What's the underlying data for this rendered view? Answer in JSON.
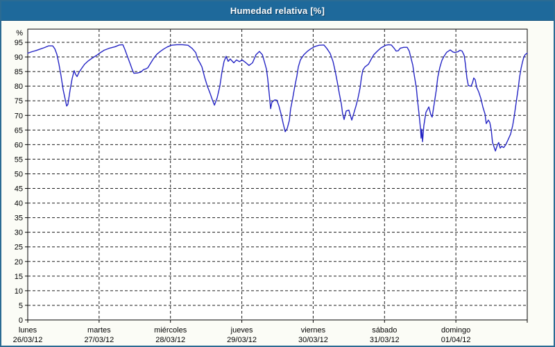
{
  "window": {
    "title": "Humedad relativa [%]"
  },
  "colors": {
    "titlebar_bg": "#1e699b",
    "titlebar_border": "#15527e",
    "titlebar_text": "#ffffff",
    "outer_border": "#2b6b93",
    "page_bg": "#fbfcf6",
    "plot_bg": "#ffffff",
    "axis": "#000000",
    "grid": "#1a1a1a",
    "text": "#000000",
    "line": "#2424c4"
  },
  "chart_data": {
    "type": "line",
    "title": "Humedad relativa [%]",
    "ylabel": "%",
    "ylim": [
      0,
      99.5
    ],
    "yticks": [
      0,
      5,
      10,
      15,
      20,
      25,
      30,
      35,
      40,
      45,
      50,
      55,
      60,
      65,
      70,
      75,
      80,
      85,
      90,
      95
    ],
    "xlim_hours": [
      0,
      168
    ],
    "grid": "dashed",
    "legend_position": "none",
    "day_ticks": [
      {
        "hour": 0,
        "day": "lunes",
        "date": "26/03/12"
      },
      {
        "hour": 24,
        "day": "martes",
        "date": "27/03/12"
      },
      {
        "hour": 48,
        "day": "miércoles",
        "date": "28/03/12"
      },
      {
        "hour": 72,
        "day": "jueves",
        "date": "29/03/12"
      },
      {
        "hour": 96,
        "day": "viernes",
        "date": "30/03/12"
      },
      {
        "hour": 120,
        "day": "sábado",
        "date": "31/03/12"
      },
      {
        "hour": 144,
        "day": "domingo",
        "date": "01/04/12"
      }
    ],
    "series": [
      {
        "name": "Humedad relativa",
        "points": [
          [
            0,
            91.3
          ],
          [
            1.4,
            91.8
          ],
          [
            2.8,
            92.2
          ],
          [
            4.2,
            92.7
          ],
          [
            5.6,
            93.2
          ],
          [
            7,
            93.8
          ],
          [
            8.4,
            93.8
          ],
          [
            9.1,
            92.8
          ],
          [
            9.8,
            90.9
          ],
          [
            10.5,
            87.5
          ],
          [
            11.2,
            83.5
          ],
          [
            11.9,
            78.8
          ],
          [
            12.6,
            75.5
          ],
          [
            13.1,
            73.2
          ],
          [
            13.5,
            73.8
          ],
          [
            14.2,
            78.5
          ],
          [
            14.9,
            82.5
          ],
          [
            15.6,
            85.3
          ],
          [
            16.1,
            84
          ],
          [
            16.6,
            83.3
          ],
          [
            17.3,
            84.8
          ],
          [
            18.2,
            86.2
          ],
          [
            19.1,
            87.5
          ],
          [
            20.3,
            88.6
          ],
          [
            21.7,
            89.6
          ],
          [
            23.1,
            90.5
          ],
          [
            24,
            91.2
          ],
          [
            25.7,
            92.3
          ],
          [
            27.5,
            93
          ],
          [
            29.4,
            93.5
          ],
          [
            30.8,
            94.1
          ],
          [
            32,
            94.2
          ],
          [
            32.7,
            92.5
          ],
          [
            33.6,
            90
          ],
          [
            34.5,
            87.5
          ],
          [
            35.2,
            85.5
          ],
          [
            35.7,
            84.4
          ],
          [
            36.9,
            84.5
          ],
          [
            38,
            84.8
          ],
          [
            39,
            85.7
          ],
          [
            39.7,
            85.9
          ],
          [
            40.4,
            86.3
          ],
          [
            41.3,
            87.8
          ],
          [
            42.2,
            89.3
          ],
          [
            43.4,
            90.9
          ],
          [
            44.6,
            91.9
          ],
          [
            45.7,
            92.7
          ],
          [
            46.9,
            93.4
          ],
          [
            48.3,
            94
          ],
          [
            50.2,
            94.2
          ],
          [
            52,
            94.2
          ],
          [
            53.9,
            94
          ],
          [
            55.3,
            92.9
          ],
          [
            56.5,
            91.5
          ],
          [
            57.2,
            89.2
          ],
          [
            57.9,
            88
          ],
          [
            58.6,
            86.6
          ],
          [
            59.5,
            83
          ],
          [
            60.4,
            80
          ],
          [
            61.4,
            77.4
          ],
          [
            62.1,
            75.3
          ],
          [
            62.8,
            73.5
          ],
          [
            63.7,
            76
          ],
          [
            64.6,
            80
          ],
          [
            65.3,
            84.8
          ],
          [
            66,
            88.4
          ],
          [
            66.7,
            90.2
          ],
          [
            67.4,
            88.5
          ],
          [
            68.1,
            89.3
          ],
          [
            69.3,
            88
          ],
          [
            70.2,
            89
          ],
          [
            71.2,
            88.4
          ],
          [
            72.1,
            89
          ],
          [
            73.3,
            88.1
          ],
          [
            74.4,
            87.1
          ],
          [
            75.6,
            88
          ],
          [
            76.8,
            90.8
          ],
          [
            77.9,
            91.9
          ],
          [
            78.9,
            90.8
          ],
          [
            79.6,
            88.4
          ],
          [
            80.3,
            85.8
          ],
          [
            80.7,
            82.5
          ],
          [
            81.2,
            77.5
          ],
          [
            81.7,
            72.3
          ],
          [
            82.1,
            74.5
          ],
          [
            83.1,
            75.3
          ],
          [
            83.8,
            75.2
          ],
          [
            84.5,
            73.2
          ],
          [
            85.2,
            70.5
          ],
          [
            85.9,
            67.3
          ],
          [
            86.6,
            64.4
          ],
          [
            87.3,
            65.6
          ],
          [
            88,
            68.3
          ],
          [
            88.4,
            72.2
          ],
          [
            89.1,
            75.8
          ],
          [
            89.8,
            79.9
          ],
          [
            90.5,
            83.4
          ],
          [
            91,
            86.6
          ],
          [
            91.7,
            89
          ],
          [
            92.9,
            90.8
          ],
          [
            94,
            91.9
          ],
          [
            95.2,
            92.8
          ],
          [
            96.6,
            93.6
          ],
          [
            98,
            94
          ],
          [
            99.6,
            94.1
          ],
          [
            100.6,
            92.9
          ],
          [
            101.7,
            91.2
          ],
          [
            102.7,
            88.4
          ],
          [
            103.4,
            85.2
          ],
          [
            104.1,
            81.5
          ],
          [
            104.8,
            77.5
          ],
          [
            105.5,
            73.8
          ],
          [
            105.9,
            70.5
          ],
          [
            106.4,
            68.6
          ],
          [
            107.1,
            71.5
          ],
          [
            108,
            71.8
          ],
          [
            108.5,
            70
          ],
          [
            109,
            68.4
          ],
          [
            109.7,
            70.8
          ],
          [
            110.4,
            73.2
          ],
          [
            111.1,
            76
          ],
          [
            111.8,
            79.5
          ],
          [
            112.2,
            82.8
          ],
          [
            112.7,
            85.5
          ],
          [
            113.4,
            86.6
          ],
          [
            114.6,
            87.5
          ],
          [
            115.5,
            89.2
          ],
          [
            116.4,
            90.8
          ],
          [
            117.6,
            92
          ],
          [
            118.8,
            93.1
          ],
          [
            120.4,
            94
          ],
          [
            121.3,
            94.2
          ],
          [
            122.3,
            94.1
          ],
          [
            123.2,
            93
          ],
          [
            123.9,
            92
          ],
          [
            124.6,
            92.1
          ],
          [
            125.3,
            93
          ],
          [
            126.5,
            93.3
          ],
          [
            127.6,
            93.3
          ],
          [
            128.3,
            92
          ],
          [
            128.8,
            90
          ],
          [
            129.5,
            87.2
          ],
          [
            130,
            83.8
          ],
          [
            130.7,
            79.5
          ],
          [
            131.1,
            75
          ],
          [
            131.6,
            70.5
          ],
          [
            132.1,
            65.5
          ],
          [
            132.3,
            62.2
          ],
          [
            132.5,
            65.3
          ],
          [
            132.8,
            61
          ],
          [
            133.2,
            66.4
          ],
          [
            133.9,
            71
          ],
          [
            134.9,
            72.9
          ],
          [
            135.6,
            70.2
          ],
          [
            136,
            69.4
          ],
          [
            136.7,
            74
          ],
          [
            137.4,
            78.7
          ],
          [
            137.9,
            83
          ],
          [
            138.6,
            86.4
          ],
          [
            139.3,
            88.8
          ],
          [
            140,
            90.2
          ],
          [
            140.9,
            91.6
          ],
          [
            142.1,
            92.4
          ],
          [
            143,
            91.7
          ],
          [
            143.7,
            91.5
          ],
          [
            144.7,
            91.8
          ],
          [
            145.4,
            92.3
          ],
          [
            146.1,
            92
          ],
          [
            146.8,
            90.5
          ],
          [
            147.2,
            87.5
          ],
          [
            147.7,
            82.8
          ],
          [
            148.2,
            80.2
          ],
          [
            149.1,
            80
          ],
          [
            149.6,
            81.2
          ],
          [
            150,
            82.8
          ],
          [
            150.5,
            82.2
          ],
          [
            151,
            79.6
          ],
          [
            151.7,
            78
          ],
          [
            152.4,
            75.8
          ],
          [
            153.1,
            72.8
          ],
          [
            153.8,
            70.5
          ],
          [
            154.2,
            67.2
          ],
          [
            154.9,
            68.4
          ],
          [
            155.4,
            67.6
          ],
          [
            155.9,
            65
          ],
          [
            156.3,
            60.8
          ],
          [
            157.3,
            57.8
          ],
          [
            158,
            60
          ],
          [
            158.4,
            60.7
          ],
          [
            158.9,
            58.8
          ],
          [
            159.4,
            59.4
          ],
          [
            160.1,
            59
          ],
          [
            160.8,
            60
          ],
          [
            161.7,
            62
          ],
          [
            162.4,
            63.6
          ],
          [
            163.1,
            66.5
          ],
          [
            163.6,
            69.5
          ],
          [
            164,
            72.5
          ],
          [
            164.5,
            76
          ],
          [
            165,
            79.5
          ],
          [
            165.4,
            83
          ],
          [
            165.9,
            86
          ],
          [
            166.4,
            88.2
          ],
          [
            166.8,
            89.8
          ],
          [
            167.3,
            90.8
          ],
          [
            168,
            91.3
          ]
        ]
      }
    ]
  }
}
